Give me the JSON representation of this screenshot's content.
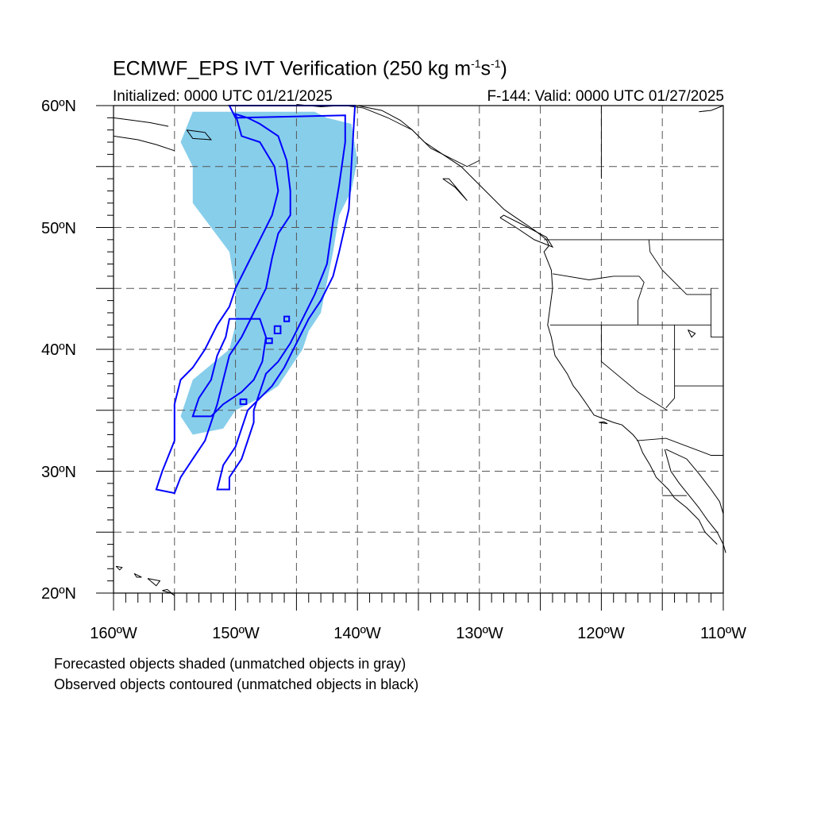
{
  "title": {
    "main": "ECMWF_EPS IVT Verification (250 kg m",
    "exp1": "-1",
    "mid": "s",
    "exp2": "-1",
    "end": ")"
  },
  "subtitle": {
    "left": "Initialized: 0000 UTC 01/21/2025",
    "right": "F-144: Valid: 0000 UTC 01/27/2025"
  },
  "axes": {
    "lat_labels": [
      "60ºN",
      "50ºN",
      "40ºN",
      "30ºN",
      "20ºN"
    ],
    "lon_labels": [
      "160ºW",
      "150ºW",
      "140ºW",
      "130ºW",
      "120ºW",
      "110ºW"
    ],
    "lat_range": [
      20,
      60
    ],
    "lon_range": [
      -160,
      -110
    ],
    "grid_spacing_deg": 5,
    "grid": "dashed"
  },
  "footnotes": [
    "Forecasted objects shaded (unmatched objects in gray)",
    "Observed objects contoured (unmatched objects in black)"
  ],
  "colors": {
    "forecast_fill": "#87ceeb",
    "observed_contour": "#0000ff",
    "coastline": "#000000",
    "grid": "#555555"
  },
  "map_data": {
    "projection": "cylindrical equidistant",
    "forecast_object": [
      [
        -153.5,
        59.5
      ],
      [
        -143.5,
        59.5
      ],
      [
        -142.5,
        59.0
      ],
      [
        -140.5,
        58.5
      ],
      [
        -140.0,
        55.5
      ],
      [
        -140.5,
        53.0
      ],
      [
        -141.5,
        51.0
      ],
      [
        -142.0,
        48.0
      ],
      [
        -142.5,
        45.5
      ],
      [
        -143.0,
        43.0
      ],
      [
        -144.0,
        41.5
      ],
      [
        -144.5,
        40.0
      ],
      [
        -145.5,
        38.5
      ],
      [
        -146.5,
        37.0
      ],
      [
        -148.0,
        36.0
      ],
      [
        -150.0,
        35.0
      ],
      [
        -151.0,
        33.5
      ],
      [
        -153.5,
        33.0
      ],
      [
        -154.5,
        34.5
      ],
      [
        -153.5,
        37.5
      ],
      [
        -150.5,
        40.0
      ],
      [
        -150.0,
        42.0
      ],
      [
        -150.0,
        45.0
      ],
      [
        -150.5,
        48.0
      ],
      [
        -152.0,
        50.0
      ],
      [
        -153.5,
        52.0
      ],
      [
        -153.5,
        55.0
      ],
      [
        -154.5,
        57.0
      ],
      [
        -153.5,
        59.5
      ]
    ],
    "observed_contours": [
      [
        [
          -150.5,
          60.0
        ],
        [
          -140.2,
          60.0
        ],
        [
          -140.5,
          55.0
        ],
        [
          -140.7,
          51.5
        ],
        [
          -141.5,
          48.0
        ],
        [
          -142.0,
          46.0
        ],
        [
          -143.0,
          44.0
        ],
        [
          -144.0,
          42.5
        ],
        [
          -145.0,
          40.5
        ],
        [
          -146.0,
          38.5
        ],
        [
          -147.0,
          37.0
        ],
        [
          -148.0,
          36.0
        ],
        [
          -149.0,
          35.0
        ],
        [
          -150.0,
          32.0
        ],
        [
          -151.0,
          30.5
        ],
        [
          -151.5,
          28.5
        ],
        [
          -150.5,
          28.5
        ],
        [
          -150.5,
          29.5
        ],
        [
          -149.5,
          31.0
        ],
        [
          -149.0,
          32.5
        ],
        [
          -148.5,
          34.0
        ],
        [
          -148.5,
          35.0
        ],
        [
          -148.0,
          36.5
        ],
        [
          -147.5,
          38.0
        ],
        [
          -146.5,
          39.0
        ],
        [
          -145.5,
          40.5
        ],
        [
          -144.5,
          42.5
        ],
        [
          -143.5,
          44.5
        ],
        [
          -142.5,
          47.0
        ],
        [
          -142.0,
          50.5
        ],
        [
          -141.5,
          53.5
        ],
        [
          -141.0,
          57.0
        ],
        [
          -141.0,
          59.2
        ],
        [
          -150.0,
          59.0
        ],
        [
          -150.5,
          60.0
        ]
      ],
      [
        [
          -150.0,
          59.3
        ],
        [
          -149.5,
          57.5
        ],
        [
          -148.0,
          57.0
        ],
        [
          -146.8,
          55.0
        ],
        [
          -146.5,
          53.0
        ],
        [
          -147.0,
          51.0
        ],
        [
          -148.0,
          49.0
        ],
        [
          -149.0,
          47.0
        ],
        [
          -150.0,
          45.0
        ],
        [
          -150.5,
          43.5
        ],
        [
          -151.5,
          42.0
        ],
        [
          -152.5,
          40.0
        ],
        [
          -153.5,
          38.5
        ],
        [
          -154.5,
          37.5
        ],
        [
          -155.0,
          35.5
        ],
        [
          -155.0,
          32.5
        ],
        [
          -156.0,
          30.0
        ],
        [
          -156.5,
          28.5
        ],
        [
          -155.0,
          28.2
        ],
        [
          -154.5,
          29.5
        ],
        [
          -153.5,
          31.0
        ],
        [
          -152.5,
          32.5
        ],
        [
          -152.0,
          34.0
        ],
        [
          -151.5,
          35.5
        ],
        [
          -151.0,
          37.5
        ],
        [
          -150.5,
          39.5
        ],
        [
          -149.5,
          41.0
        ],
        [
          -148.5,
          43.0
        ],
        [
          -147.5,
          45.0
        ],
        [
          -147.0,
          47.5
        ],
        [
          -146.5,
          49.5
        ],
        [
          -145.5,
          51.0
        ],
        [
          -145.5,
          53.0
        ],
        [
          -145.8,
          55.5
        ],
        [
          -146.5,
          57.5
        ],
        [
          -148.0,
          58.5
        ],
        [
          -149.0,
          59.0
        ],
        [
          -150.0,
          59.3
        ]
      ],
      [
        [
          -150.5,
          42.5
        ],
        [
          -148.0,
          42.5
        ],
        [
          -147.5,
          41.0
        ],
        [
          -147.8,
          39.0
        ],
        [
          -148.5,
          37.5
        ],
        [
          -149.5,
          36.5
        ],
        [
          -151.0,
          35.5
        ],
        [
          -152.0,
          34.5
        ],
        [
          -153.5,
          34.5
        ],
        [
          -153.0,
          36.0
        ],
        [
          -152.0,
          37.5
        ],
        [
          -151.5,
          39.5
        ],
        [
          -150.8,
          41.0
        ],
        [
          -150.5,
          42.5
        ]
      ],
      [
        [
          -147.5,
          40.9
        ],
        [
          -147.0,
          40.9
        ],
        [
          -147.0,
          40.5
        ],
        [
          -147.5,
          40.5
        ],
        [
          -147.5,
          40.9
        ]
      ],
      [
        [
          -146.8,
          41.9
        ],
        [
          -146.3,
          41.9
        ],
        [
          -146.3,
          41.3
        ],
        [
          -146.8,
          41.3
        ],
        [
          -146.8,
          41.9
        ]
      ],
      [
        [
          -146.0,
          42.7
        ],
        [
          -145.6,
          42.7
        ],
        [
          -145.6,
          42.3
        ],
        [
          -146.0,
          42.3
        ],
        [
          -146.0,
          42.7
        ]
      ],
      [
        [
          -149.6,
          35.9
        ],
        [
          -149.1,
          35.9
        ],
        [
          -149.1,
          35.5
        ],
        [
          -149.6,
          35.5
        ],
        [
          -149.6,
          35.9
        ]
      ]
    ]
  }
}
